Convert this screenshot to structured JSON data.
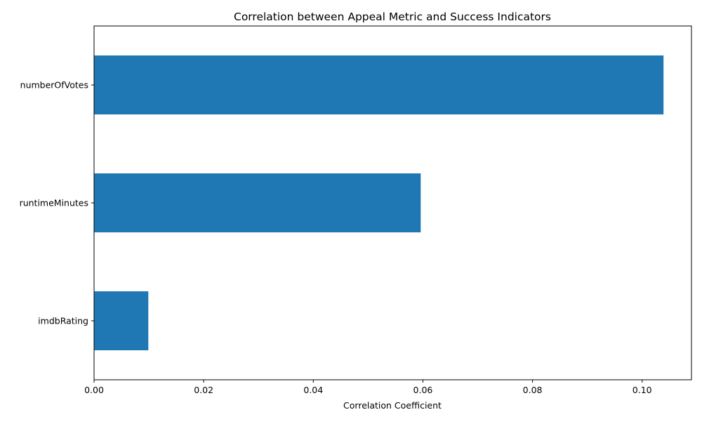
{
  "chart_data": {
    "type": "bar",
    "orientation": "horizontal",
    "title": "Correlation between Appeal Metric and Success Indicators",
    "xlabel": "Correlation Coefficient",
    "ylabel": "",
    "categories": [
      "imdbRating",
      "runtimeMinutes",
      "numberOfVotes"
    ],
    "values": [
      0.0099,
      0.0596,
      0.1039
    ],
    "xlim": [
      0,
      0.109
    ],
    "x_ticks": [
      0.0,
      0.02,
      0.04,
      0.06,
      0.08,
      0.1
    ],
    "x_tick_labels": [
      "0.00",
      "0.02",
      "0.04",
      "0.06",
      "0.08",
      "0.10"
    ],
    "bar_color": "#1f77b4",
    "grid": false,
    "legend": "none"
  }
}
